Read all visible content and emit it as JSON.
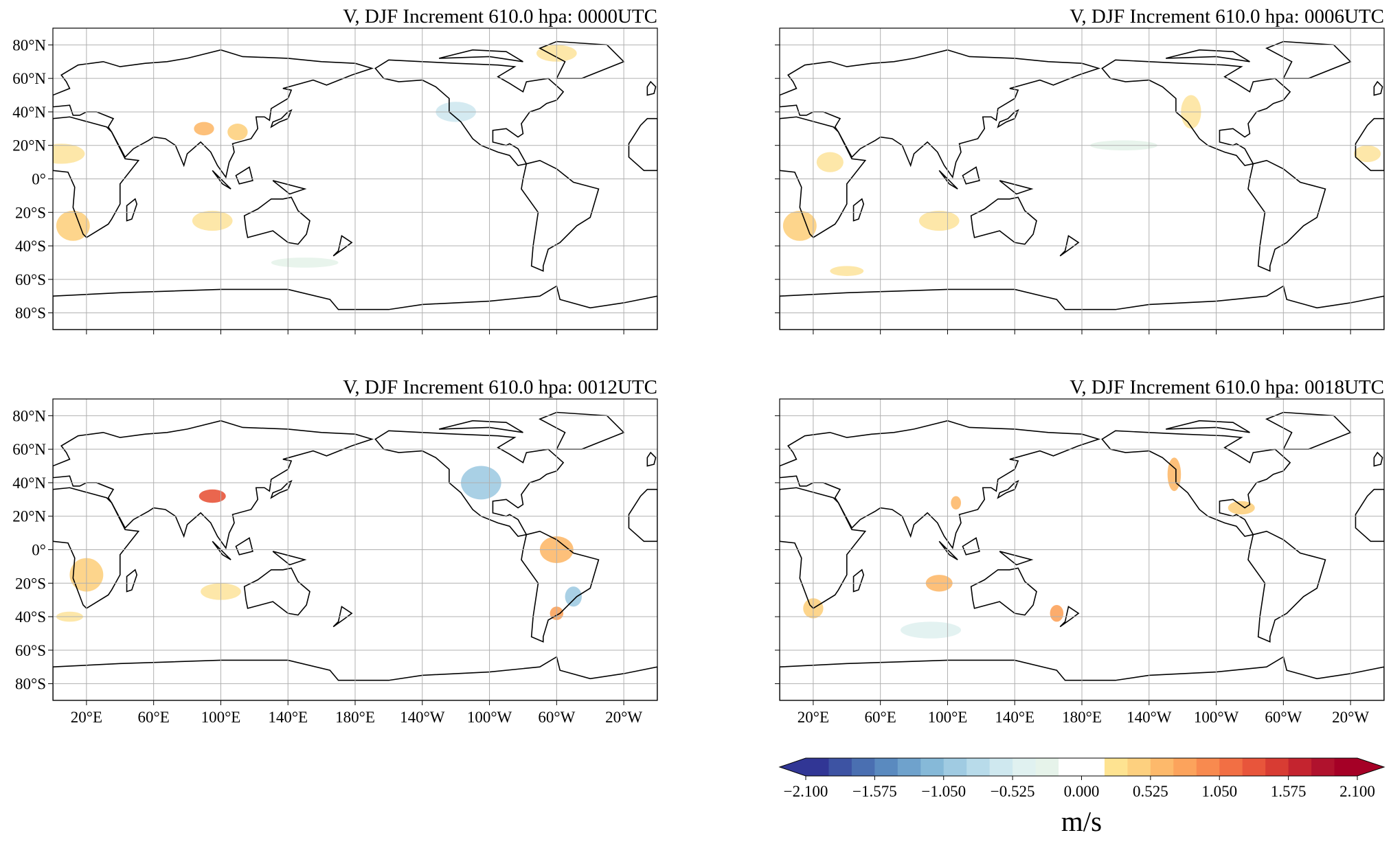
{
  "maps": [
    {
      "title": "V, DJF Increment 610.0 hpa:  0000UTC"
    },
    {
      "title": "V, DJF Increment 610.0 hpa:  0006UTC"
    },
    {
      "title": "V, DJF Increment 610.0 hpa:  0012UTC"
    },
    {
      "title": "V, DJF Increment 610.0 hpa:  0018UTC"
    }
  ],
  "lon_range": [
    0,
    360
  ],
  "lat_range": [
    -90,
    90
  ],
  "lon_ticks": [
    {
      "value": 20,
      "label": "20°E"
    },
    {
      "value": 60,
      "label": "60°E"
    },
    {
      "value": 100,
      "label": "100°E"
    },
    {
      "value": 140,
      "label": "140°E"
    },
    {
      "value": 180,
      "label": "180°E"
    },
    {
      "value": 220,
      "label": "140°W"
    },
    {
      "value": 260,
      "label": "100°W"
    },
    {
      "value": 300,
      "label": "60°W"
    },
    {
      "value": 340,
      "label": "20°W"
    }
  ],
  "lat_ticks": [
    {
      "value": 80,
      "label": "80°N"
    },
    {
      "value": 60,
      "label": "60°N"
    },
    {
      "value": 40,
      "label": "40°N"
    },
    {
      "value": 20,
      "label": "20°N"
    },
    {
      "value": 0,
      "label": "0°"
    },
    {
      "value": -20,
      "label": "20°S"
    },
    {
      "value": -40,
      "label": "40°S"
    },
    {
      "value": -60,
      "label": "60°S"
    },
    {
      "value": -80,
      "label": "80°S"
    }
  ],
  "colorbar": {
    "range": [
      -2.1,
      2.1
    ],
    "label": "m/s",
    "colors": [
      "#313695",
      "#3d53a3",
      "#4a6fb1",
      "#5a8abf",
      "#6fa2cc",
      "#86b9d8",
      "#a0cbe2",
      "#b8dbea",
      "#cfe8ef",
      "#e0f1f0",
      "#e6f3ea",
      "#ffffff",
      "#ffffff",
      "#fee391",
      "#fdd07f",
      "#fdb96b",
      "#fca35c",
      "#f88a4f",
      "#f26f44",
      "#e8553b",
      "#d83c33",
      "#c4242f",
      "#b0122d",
      "#a50026"
    ],
    "ticks": [
      {
        "value": -2.1,
        "label": "−2.100"
      },
      {
        "value": -1.575,
        "label": "−1.575"
      },
      {
        "value": -1.05,
        "label": "−1.050"
      },
      {
        "value": -0.525,
        "label": "−0.525"
      },
      {
        "value": 0,
        "label": "0.000"
      },
      {
        "value": 0.525,
        "label": "0.525"
      },
      {
        "value": 1.05,
        "label": "1.050"
      },
      {
        "value": 1.575,
        "label": "1.575"
      },
      {
        "value": 2.1,
        "label": "2.100"
      }
    ]
  }
}
